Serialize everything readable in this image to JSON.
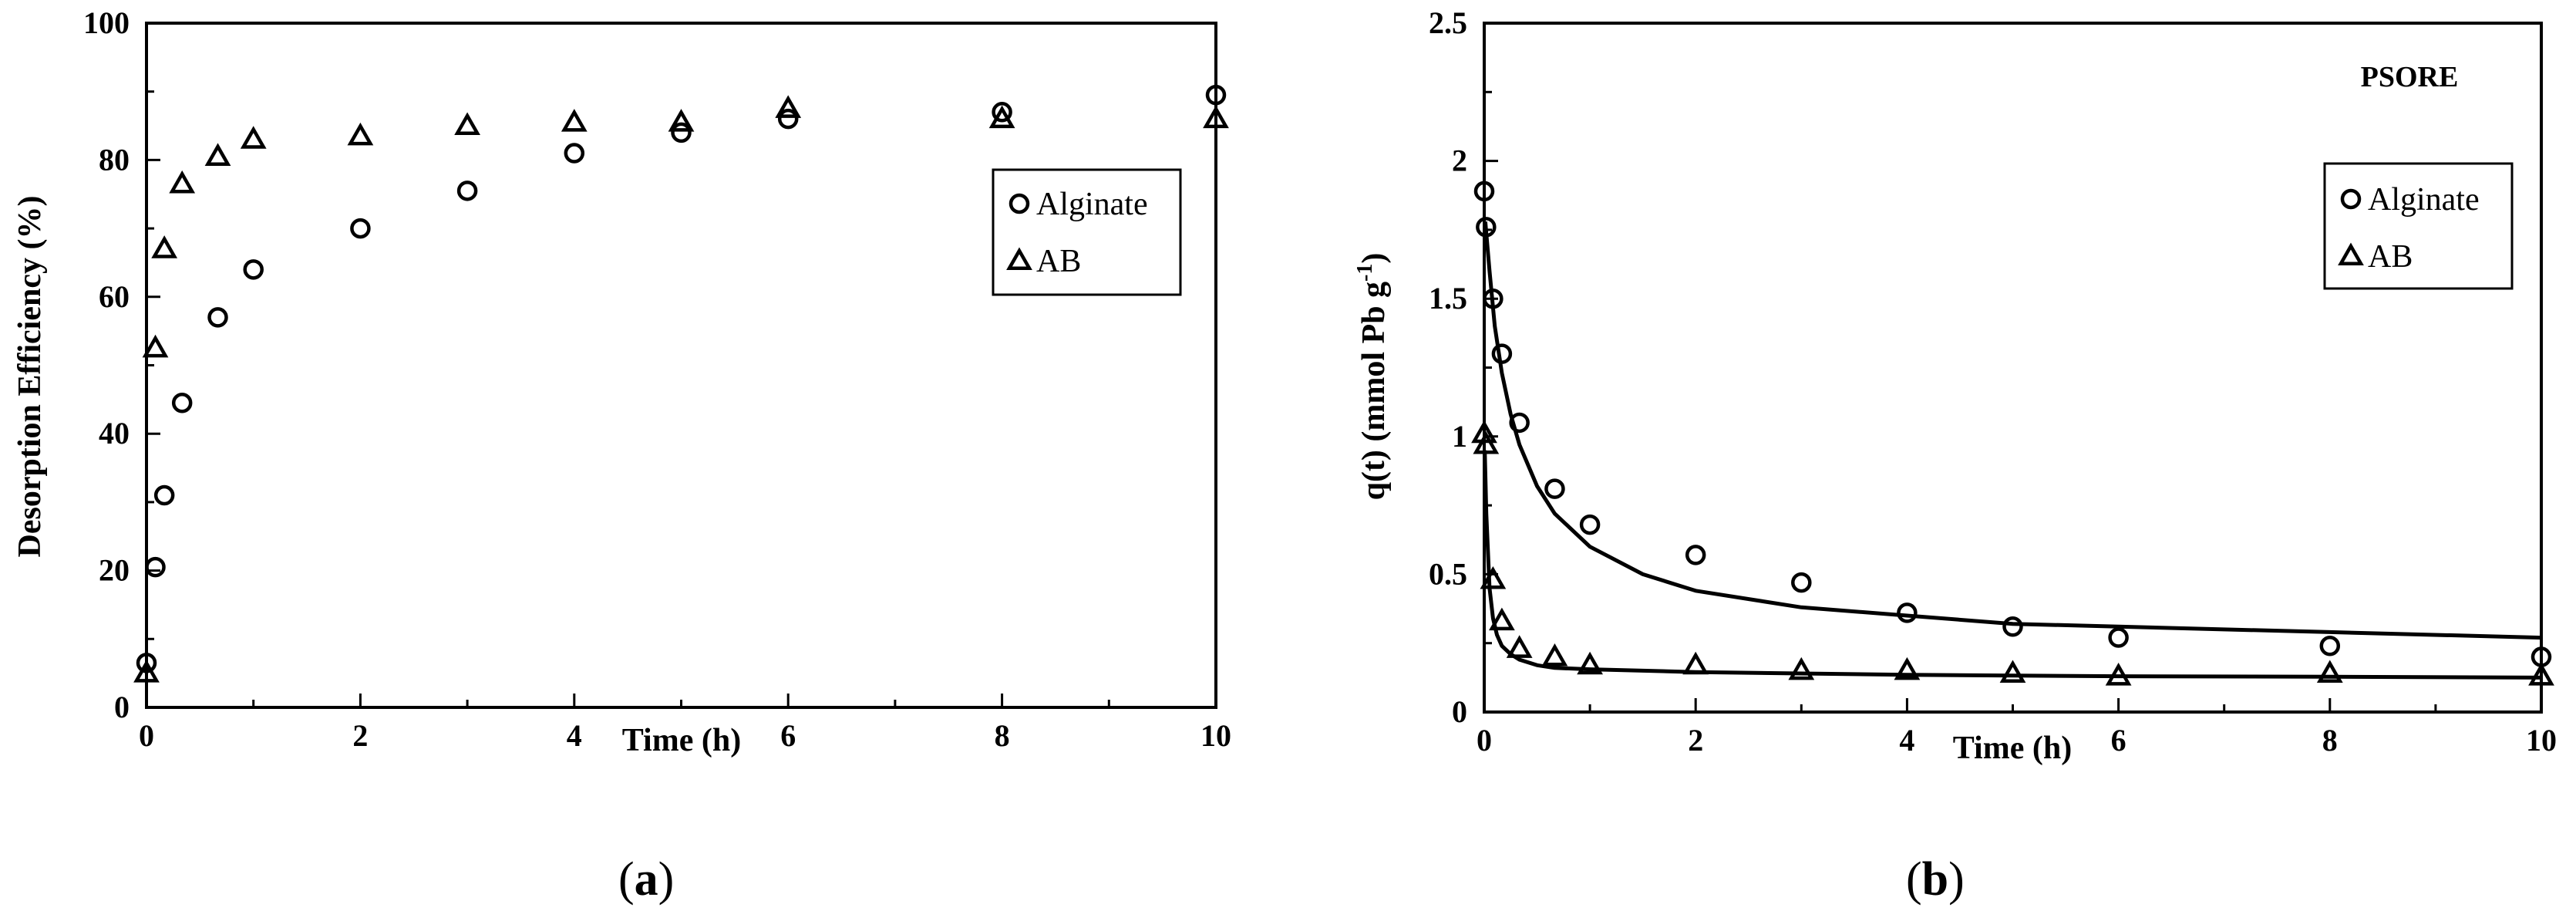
{
  "chart_data": [
    {
      "type": "scatter",
      "panel_label": "a",
      "xlabel": "Time (h)",
      "ylabel": "Desorption Efficiency (%)",
      "xlim": [
        0,
        10
      ],
      "ylim": [
        0,
        100
      ],
      "xticks": [
        0,
        2,
        4,
        6,
        8,
        10
      ],
      "yticks": [
        0,
        20,
        40,
        60,
        80,
        100
      ],
      "legend_position": "right",
      "series": [
        {
          "name": "Alginate",
          "marker": "circle",
          "x": [
            0,
            0.083,
            0.167,
            0.333,
            0.667,
            1,
            2,
            3,
            4,
            5,
            6,
            8,
            10
          ],
          "y": [
            6.5,
            20.5,
            31,
            44.5,
            57,
            64,
            70,
            75.5,
            81,
            84,
            86,
            87,
            89.5
          ]
        },
        {
          "name": "AB",
          "marker": "triangle",
          "x": [
            0,
            0.083,
            0.167,
            0.333,
            0.667,
            1,
            2,
            3,
            4,
            5,
            6,
            8,
            10
          ],
          "y": [
            5,
            52.5,
            67,
            76.5,
            80.5,
            83,
            83.5,
            85,
            85.5,
            85.5,
            87.5,
            86,
            86
          ]
        }
      ]
    },
    {
      "type": "scatter",
      "panel_label": "b",
      "annotation": "PSORE",
      "xlabel": "Time (h)",
      "ylabel_main": "q(t) (mmol Pb g",
      "ylabel_sup": "-1",
      "ylabel_end": ")",
      "xlim": [
        0,
        10
      ],
      "ylim": [
        0,
        2.5
      ],
      "xticks": [
        0,
        2,
        4,
        6,
        8,
        10
      ],
      "yticks": [
        0,
        0.5,
        1,
        1.5,
        2,
        2.5
      ],
      "legend_position": "right",
      "series": [
        {
          "name": "Alginate",
          "marker": "circle",
          "x": [
            0,
            0.017,
            0.083,
            0.167,
            0.333,
            0.667,
            1,
            2,
            3,
            4,
            5,
            6,
            8,
            10
          ],
          "y": [
            1.89,
            1.76,
            1.5,
            1.3,
            1.05,
            0.81,
            0.68,
            0.57,
            0.47,
            0.36,
            0.31,
            0.27,
            0.24,
            0.2
          ],
          "fit": {
            "x": [
              0.01,
              0.05,
              0.1,
              0.167,
              0.25,
              0.333,
              0.5,
              0.667,
              1,
              1.5,
              2,
              3,
              4,
              5,
              6,
              8,
              10
            ],
            "y": [
              1.78,
              1.6,
              1.4,
              1.23,
              1.08,
              0.97,
              0.82,
              0.72,
              0.6,
              0.5,
              0.44,
              0.38,
              0.35,
              0.32,
              0.31,
              0.29,
              0.27
            ]
          }
        },
        {
          "name": "AB",
          "marker": "triangle",
          "x": [
            0,
            0.017,
            0.083,
            0.167,
            0.333,
            0.667,
            1,
            2,
            3,
            4,
            5,
            6,
            8,
            10
          ],
          "y": [
            1.01,
            0.97,
            0.48,
            0.33,
            0.23,
            0.2,
            0.17,
            0.17,
            0.15,
            0.15,
            0.14,
            0.13,
            0.14,
            0.13
          ],
          "fit": {
            "x": [
              0.005,
              0.02,
              0.05,
              0.083,
              0.12,
              0.167,
              0.25,
              0.333,
              0.5,
              0.667,
              1,
              2,
              4,
              6,
              8,
              10
            ],
            "y": [
              0.95,
              0.72,
              0.45,
              0.34,
              0.28,
              0.24,
              0.21,
              0.19,
              0.17,
              0.16,
              0.155,
              0.145,
              0.135,
              0.13,
              0.128,
              0.125
            ]
          }
        }
      ]
    }
  ]
}
